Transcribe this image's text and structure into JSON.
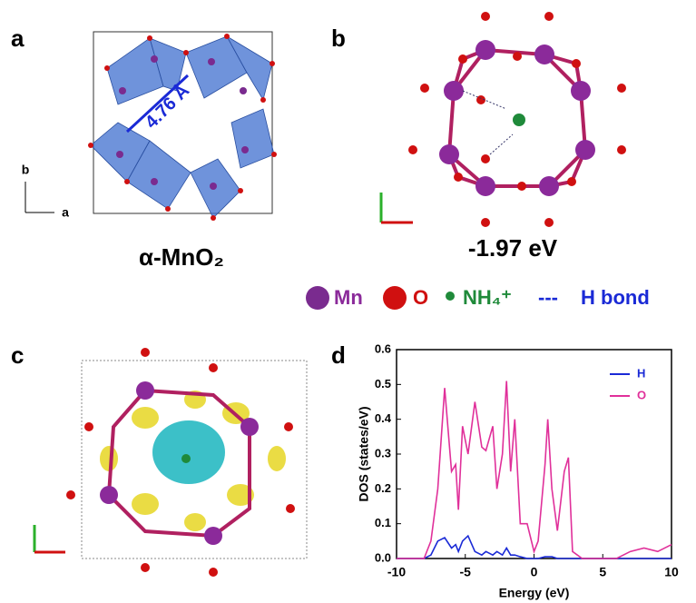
{
  "panels": {
    "a": {
      "label": "a",
      "distance": "4.76 Å",
      "axis_b": "b",
      "axis_a": "a",
      "caption": "α-MnO₂"
    },
    "b": {
      "label": "b",
      "caption": "-1.97 eV"
    },
    "c": {
      "label": "c"
    },
    "d": {
      "label": "d"
    }
  },
  "legend": {
    "mn": "Mn",
    "o": "O",
    "nh4": "NH₄⁺",
    "hbond_symbol": "---",
    "hbond": "H bond"
  },
  "chart_data": {
    "type": "line",
    "xlabel": "Energy (eV)",
    "ylabel": "DOS (states/eV)",
    "x": [
      -10,
      -8,
      -7.5,
      -7,
      -6.5,
      -6,
      -5.7,
      -5.5,
      -5.2,
      -4.8,
      -4.3,
      -3.8,
      -3.5,
      -3,
      -2.7,
      -2.3,
      -2,
      -1.7,
      -1.4,
      -1,
      -0.5,
      0,
      0.3,
      0.8,
      1,
      1.3,
      1.7,
      2.2,
      2.5,
      2.8,
      3.5,
      6,
      7,
      8,
      9,
      10
    ],
    "series": [
      {
        "name": "H",
        "color": "#1a2ad6",
        "values": [
          0,
          0,
          0.01,
          0.05,
          0.06,
          0.03,
          0.04,
          0.02,
          0.05,
          0.065,
          0.02,
          0.01,
          0.02,
          0.01,
          0.02,
          0.01,
          0.03,
          0.01,
          0.01,
          0.005,
          0,
          0,
          0,
          0.005,
          0.005,
          0.005,
          0,
          0,
          0,
          0,
          0,
          0,
          0,
          0,
          0,
          0
        ]
      },
      {
        "name": "O",
        "color": "#e0309a",
        "values": [
          0,
          0,
          0.05,
          0.2,
          0.49,
          0.25,
          0.27,
          0.14,
          0.38,
          0.3,
          0.45,
          0.32,
          0.31,
          0.38,
          0.2,
          0.3,
          0.51,
          0.25,
          0.4,
          0.1,
          0.1,
          0.02,
          0.05,
          0.27,
          0.4,
          0.2,
          0.08,
          0.25,
          0.29,
          0.02,
          0,
          0,
          0.02,
          0.03,
          0.02,
          0.04
        ]
      }
    ],
    "xlim": [
      -10,
      10
    ],
    "ylim": [
      0,
      0.6
    ],
    "xticks": [
      -10,
      -5,
      0,
      5,
      10
    ],
    "yticks": [
      {
        "value": 0,
        "label": "0.0"
      },
      0.1,
      0.2,
      0.3,
      0.4,
      0.5,
      0.6
    ],
    "legend": "upper right"
  }
}
